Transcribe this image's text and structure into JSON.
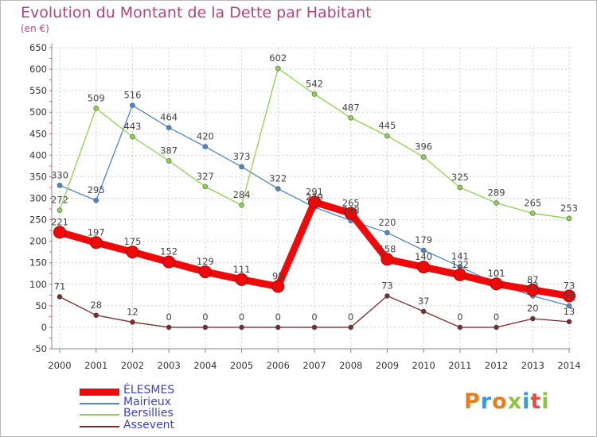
{
  "header": {
    "title": "Evolution du Montant de la Dette par Habitant",
    "subtitle": "(en €)"
  },
  "logo": {
    "text": "Proxiti",
    "colors": [
      "#e87d1e",
      "#3a9ad9",
      "#e87d1e",
      "#8cc63f",
      "#3a9ad9",
      "#e84c3d",
      "#8cc63f"
    ]
  },
  "chart_data": {
    "type": "line",
    "title": "Evolution du Montant de la Dette par Habitant",
    "subtitle": "(en €)",
    "xlabel": "",
    "ylabel": "",
    "x": [
      2000,
      2001,
      2002,
      2003,
      2004,
      2005,
      2006,
      2007,
      2008,
      2009,
      2010,
      2011,
      2012,
      2013,
      2014
    ],
    "ylim": [
      -50,
      650
    ],
    "yticks": [
      -50,
      0,
      50,
      100,
      150,
      200,
      250,
      300,
      350,
      400,
      450,
      500,
      550,
      600,
      650
    ],
    "grid": true,
    "legend_position": "bottom-left",
    "series": [
      {
        "name": "ÉLESMES",
        "color": "#ee0a0a",
        "emphasis": true,
        "values": [
          221,
          197,
          175,
          152,
          129,
          111,
          95,
          291,
          265,
          158,
          140,
          122,
          101,
          87,
          73
        ],
        "labels": [
          "221",
          "197",
          "175",
          "152",
          "129",
          "111",
          "95",
          "291",
          "265",
          "158",
          "140",
          "122",
          "101",
          "87",
          "73"
        ]
      },
      {
        "name": "Mairieux",
        "color": "#4f86c6",
        "values": [
          330,
          295,
          516,
          464,
          420,
          373,
          322,
          279,
          248,
          220,
          179,
          141,
          101,
          73,
          50
        ],
        "labels": [
          "330",
          "295",
          "516",
          "464",
          "420",
          "373",
          "322",
          "279",
          "248",
          "220",
          "179",
          "141",
          "101",
          "73",
          "50"
        ]
      },
      {
        "name": "Bersillies",
        "color": "#8fd24e",
        "values": [
          272,
          509,
          443,
          387,
          327,
          284,
          602,
          542,
          487,
          445,
          396,
          325,
          289,
          265,
          253
        ],
        "labels": [
          "272",
          "509",
          "443",
          "387",
          "327",
          "284",
          "602",
          "542",
          "487",
          "445",
          "396",
          "325",
          "289",
          "265",
          "253"
        ]
      },
      {
        "name": "Assevent",
        "color": "#7a2b2b",
        "values": [
          71,
          28,
          12,
          0,
          0,
          0,
          0,
          0,
          0,
          73,
          37,
          0,
          0,
          20,
          13
        ],
        "labels": [
          "71",
          "28",
          "12",
          "0",
          "0",
          "0",
          "0",
          "0",
          "0",
          "73",
          "37",
          "0",
          "0",
          "20",
          "13"
        ]
      }
    ]
  }
}
